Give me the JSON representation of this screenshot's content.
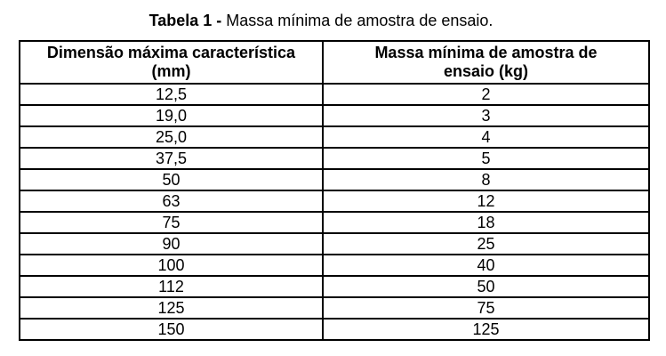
{
  "caption": {
    "label": "Tabela 1 -",
    "text": " Massa mínima de amostra de ensaio."
  },
  "table": {
    "headers": [
      {
        "line1": "Dimensão máxima característica",
        "line2": "(mm)"
      },
      {
        "line1": "Massa mínima de amostra de",
        "line2": "ensaio (kg)"
      }
    ],
    "rows": [
      [
        "12,5",
        "2"
      ],
      [
        "19,0",
        "3"
      ],
      [
        "25,0",
        "4"
      ],
      [
        "37,5",
        "5"
      ],
      [
        "50",
        "8"
      ],
      [
        "63",
        "12"
      ],
      [
        "75",
        "18"
      ],
      [
        "90",
        "25"
      ],
      [
        "100",
        "40"
      ],
      [
        "112",
        "50"
      ],
      [
        "125",
        "75"
      ],
      [
        "150",
        "125"
      ]
    ],
    "border_color": "#000000",
    "text_color": "#000000",
    "background_color": "#ffffff"
  }
}
